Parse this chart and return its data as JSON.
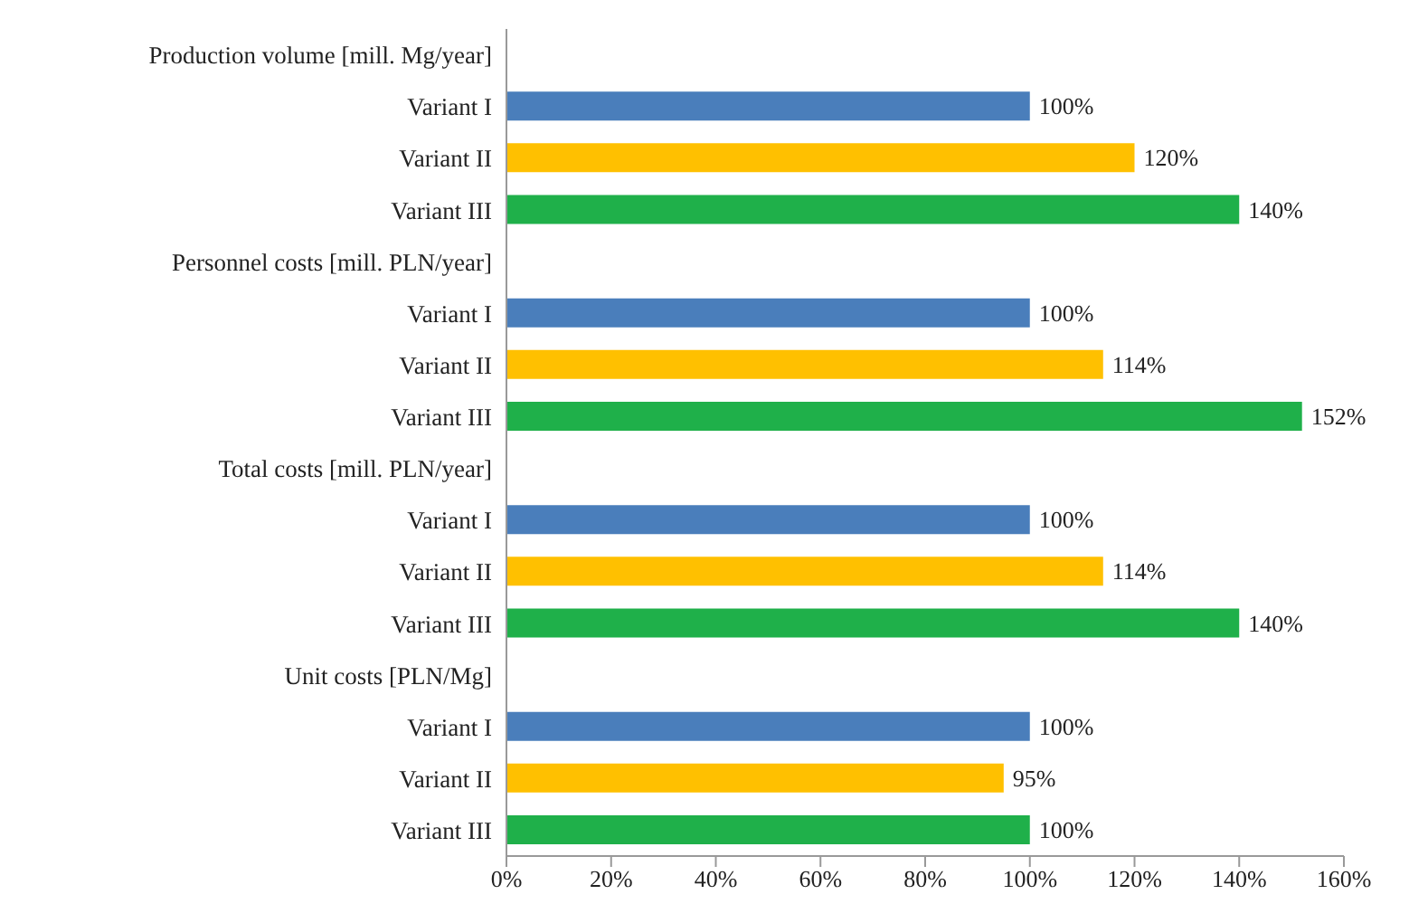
{
  "chart_data": {
    "type": "bar",
    "orientation": "horizontal",
    "categories": [
      "Production volume [mill. Mg/year]",
      "Variant I",
      "Variant II",
      "Variant III",
      "Personnel costs [mill. PLN/year]",
      "Variant I",
      "Variant II",
      "Variant III",
      "Total costs [mill. PLN/year]",
      "Variant I",
      "Variant II",
      "Variant III",
      "Unit costs [PLN/Mg]",
      "Variant I",
      "Variant II",
      "Variant III"
    ],
    "values": [
      null,
      100,
      120,
      140,
      null,
      100,
      114,
      152,
      null,
      100,
      114,
      140,
      null,
      100,
      95,
      100
    ],
    "value_labels": [
      null,
      "100%",
      "120%",
      "140%",
      null,
      "100%",
      "114%",
      "152%",
      null,
      "100%",
      "114%",
      "140%",
      null,
      "100%",
      "95%",
      "100%"
    ],
    "colors": [
      null,
      "#4a7ebb",
      "#ffc000",
      "#1fb04a",
      null,
      "#4a7ebb",
      "#ffc000",
      "#1fb04a",
      null,
      "#4a7ebb",
      "#ffc000",
      "#1fb04a",
      null,
      "#4a7ebb",
      "#ffc000",
      "#1fb04a"
    ],
    "xlim": [
      0,
      160
    ],
    "xticks": [
      {
        "value": 0,
        "label": "0%"
      },
      {
        "value": 20,
        "label": "20%"
      },
      {
        "value": 40,
        "label": "40%"
      },
      {
        "value": 60,
        "label": "60%"
      },
      {
        "value": 80,
        "label": "80%"
      },
      {
        "value": 100,
        "label": "100%"
      },
      {
        "value": 120,
        "label": "120%"
      },
      {
        "value": 140,
        "label": "140%"
      },
      {
        "value": 160,
        "label": "160%"
      }
    ],
    "grid": false
  }
}
